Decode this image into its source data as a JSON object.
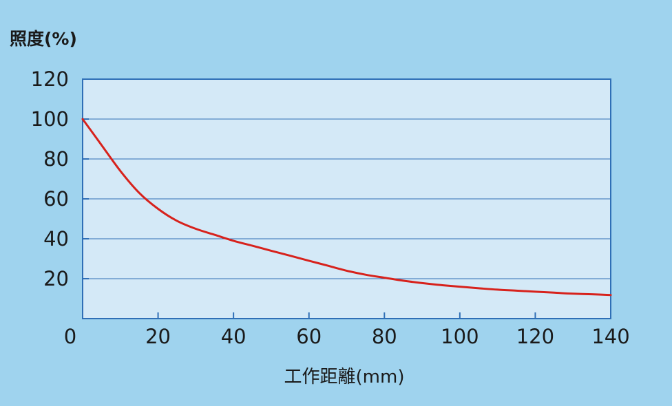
{
  "chart_data": {
    "type": "line",
    "title": "",
    "ylabel": "照度(%)",
    "xlabel": "工作距離(mm)",
    "xlim": [
      0,
      140
    ],
    "ylim": [
      0,
      120
    ],
    "x_ticks": [
      0,
      20,
      40,
      60,
      80,
      100,
      120,
      140
    ],
    "y_ticks": [
      20,
      40,
      60,
      80,
      100,
      120
    ],
    "grid": "horizontal",
    "colors": {
      "background": "#9fd3ee",
      "plot_area": "#d4e9f7",
      "grid": "#2f6fb6",
      "axis": "#2f6fb6",
      "line": "#d7221c"
    },
    "series": [
      {
        "x": [
          0,
          5,
          10,
          15,
          20,
          25,
          30,
          35,
          40,
          45,
          50,
          55,
          60,
          65,
          70,
          75,
          80,
          85,
          90,
          95,
          100,
          105,
          110,
          115,
          120,
          125,
          130,
          135,
          140
        ],
        "values": [
          100,
          87,
          74,
          63,
          55,
          49,
          45,
          42,
          39,
          36.5,
          34,
          31.5,
          29,
          26.5,
          24,
          22,
          20.5,
          19,
          17.8,
          16.8,
          16,
          15.2,
          14.5,
          14,
          13.5,
          13,
          12.5,
          12.2,
          11.8
        ]
      }
    ]
  }
}
